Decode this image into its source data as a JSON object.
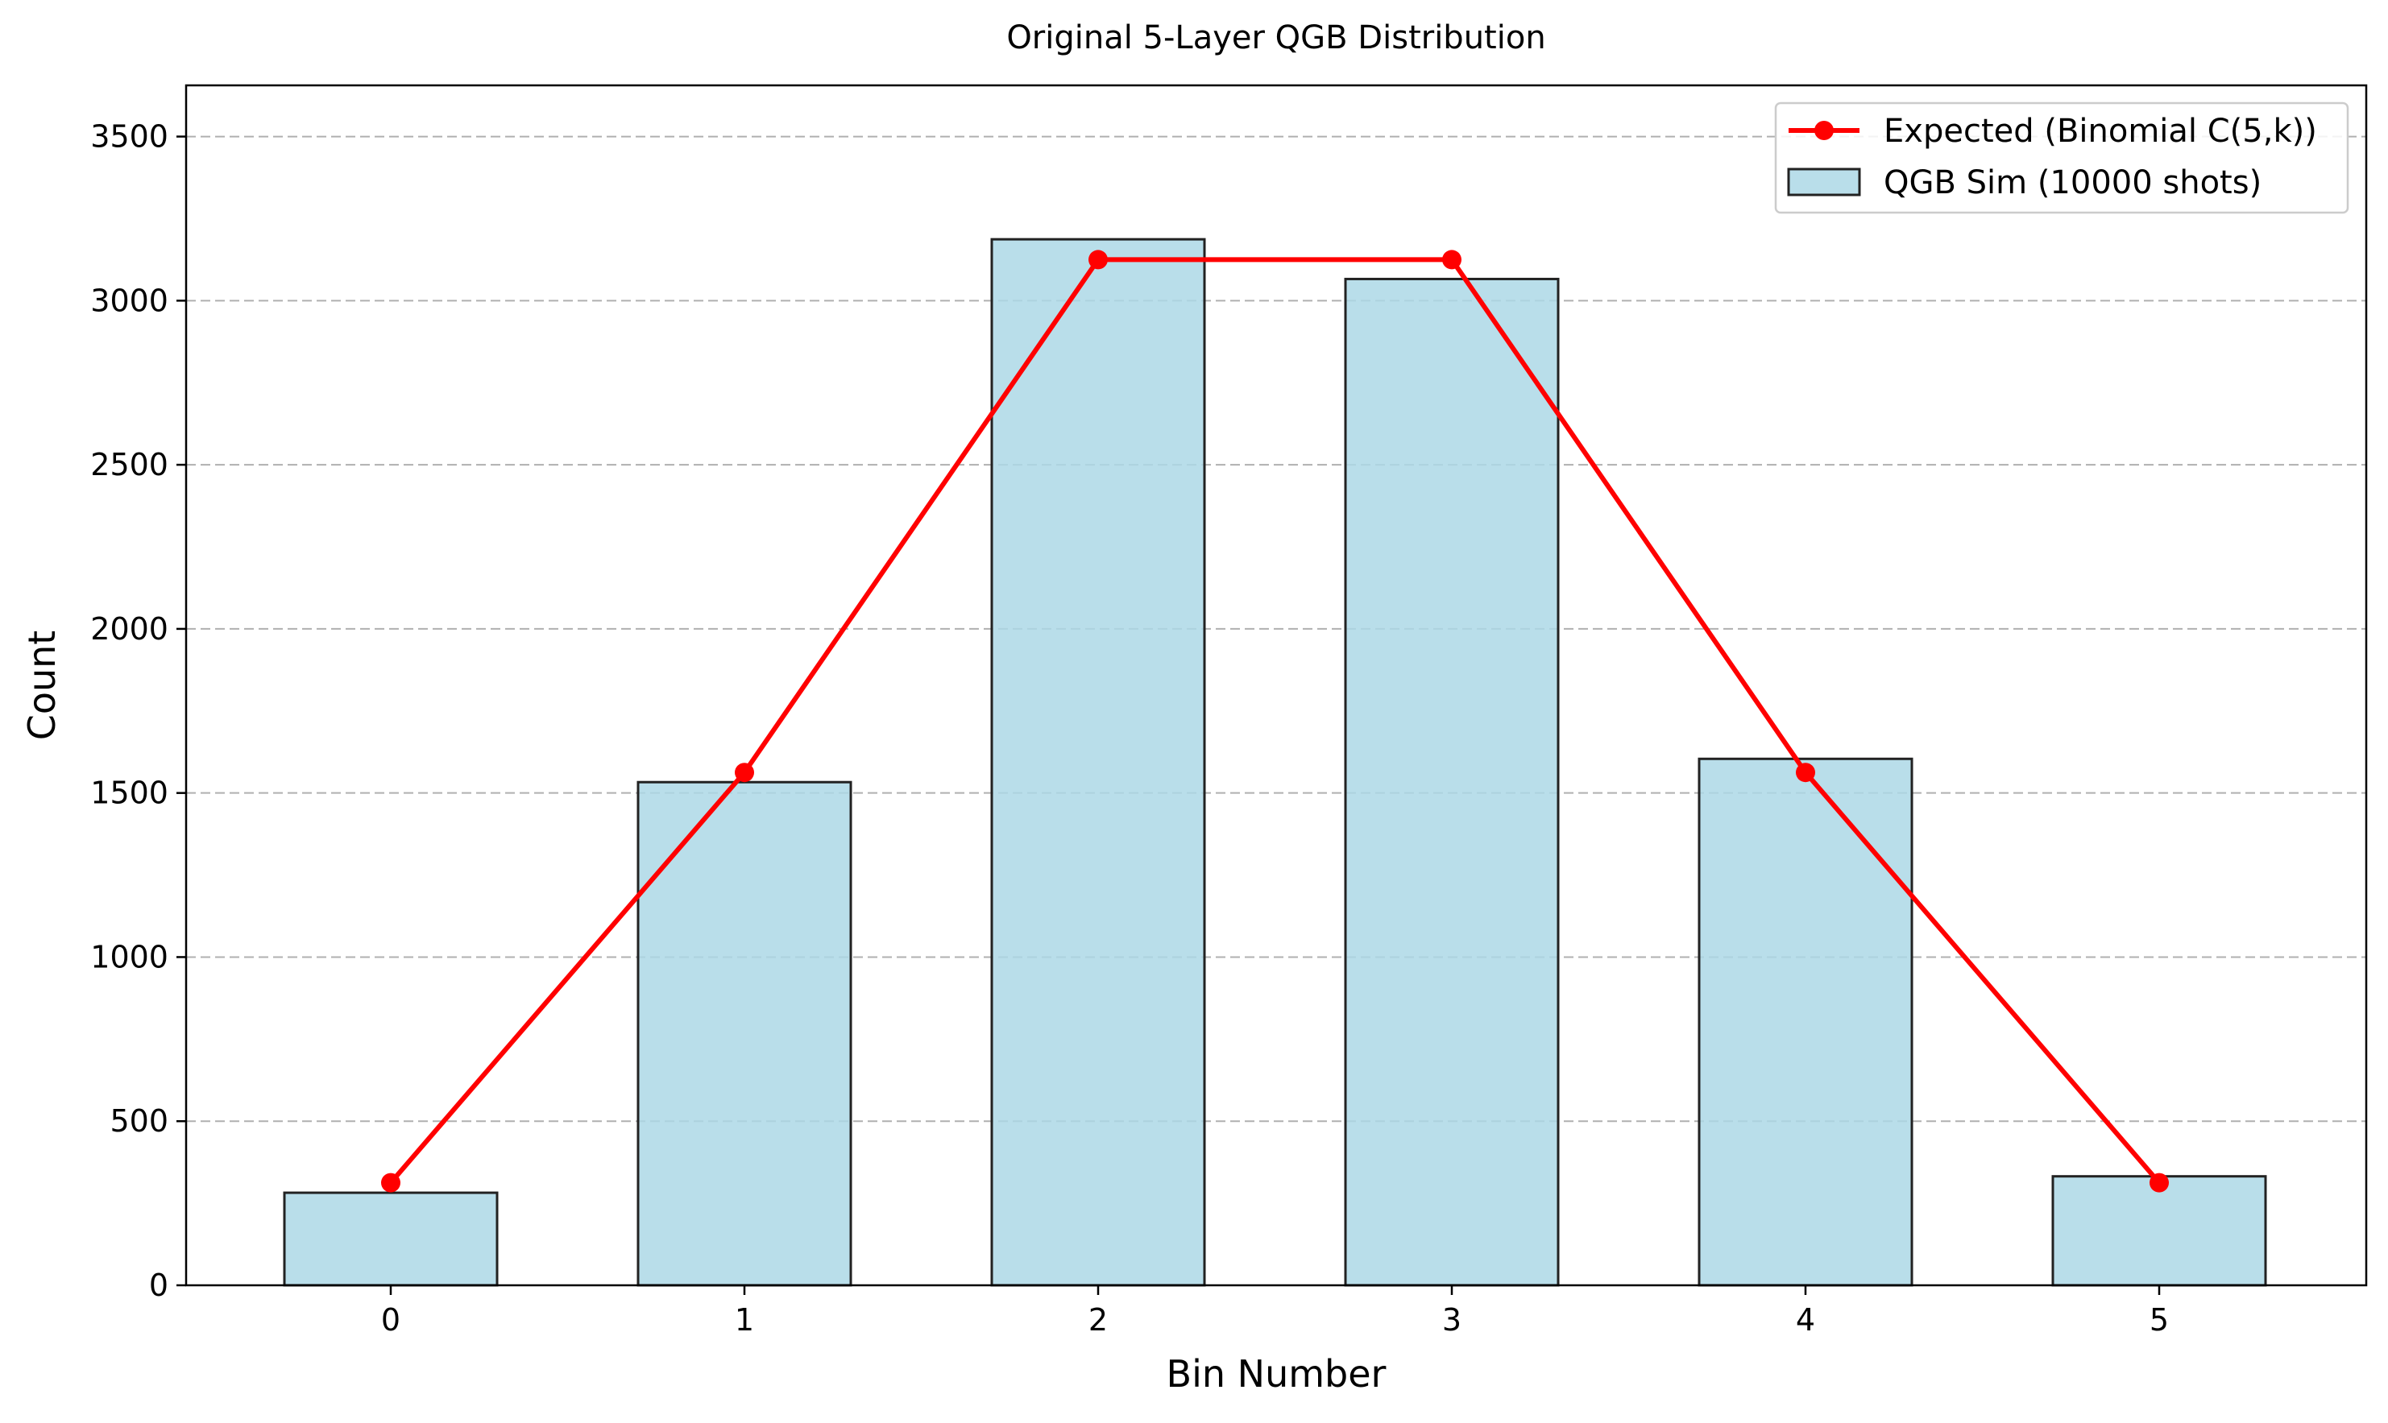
{
  "chart_data": {
    "type": "bar",
    "title": "Original 5-Layer QGB Distribution",
    "xlabel": "Bin Number",
    "ylabel": "Count",
    "categories": [
      "0",
      "1",
      "2",
      "3",
      "4",
      "5"
    ],
    "ylim": [
      0,
      3656
    ],
    "yticks": [
      0,
      500,
      1000,
      1500,
      2000,
      2500,
      3000,
      3500
    ],
    "grid": "y-dashed",
    "legend_position": "top-right",
    "series": [
      {
        "name": "QGB Sim (10000 shots)",
        "type": "bar",
        "color": "#add8e6",
        "edge_color": "#222222",
        "values": [
          282,
          1533,
          3187,
          3066,
          1604,
          332
        ]
      },
      {
        "name": "Expected (Binomial C(5,k))",
        "type": "line",
        "color": "#ff0000",
        "marker": "circle",
        "values": [
          312.5,
          1562.5,
          3125,
          3125,
          1562.5,
          312.5
        ]
      }
    ]
  }
}
